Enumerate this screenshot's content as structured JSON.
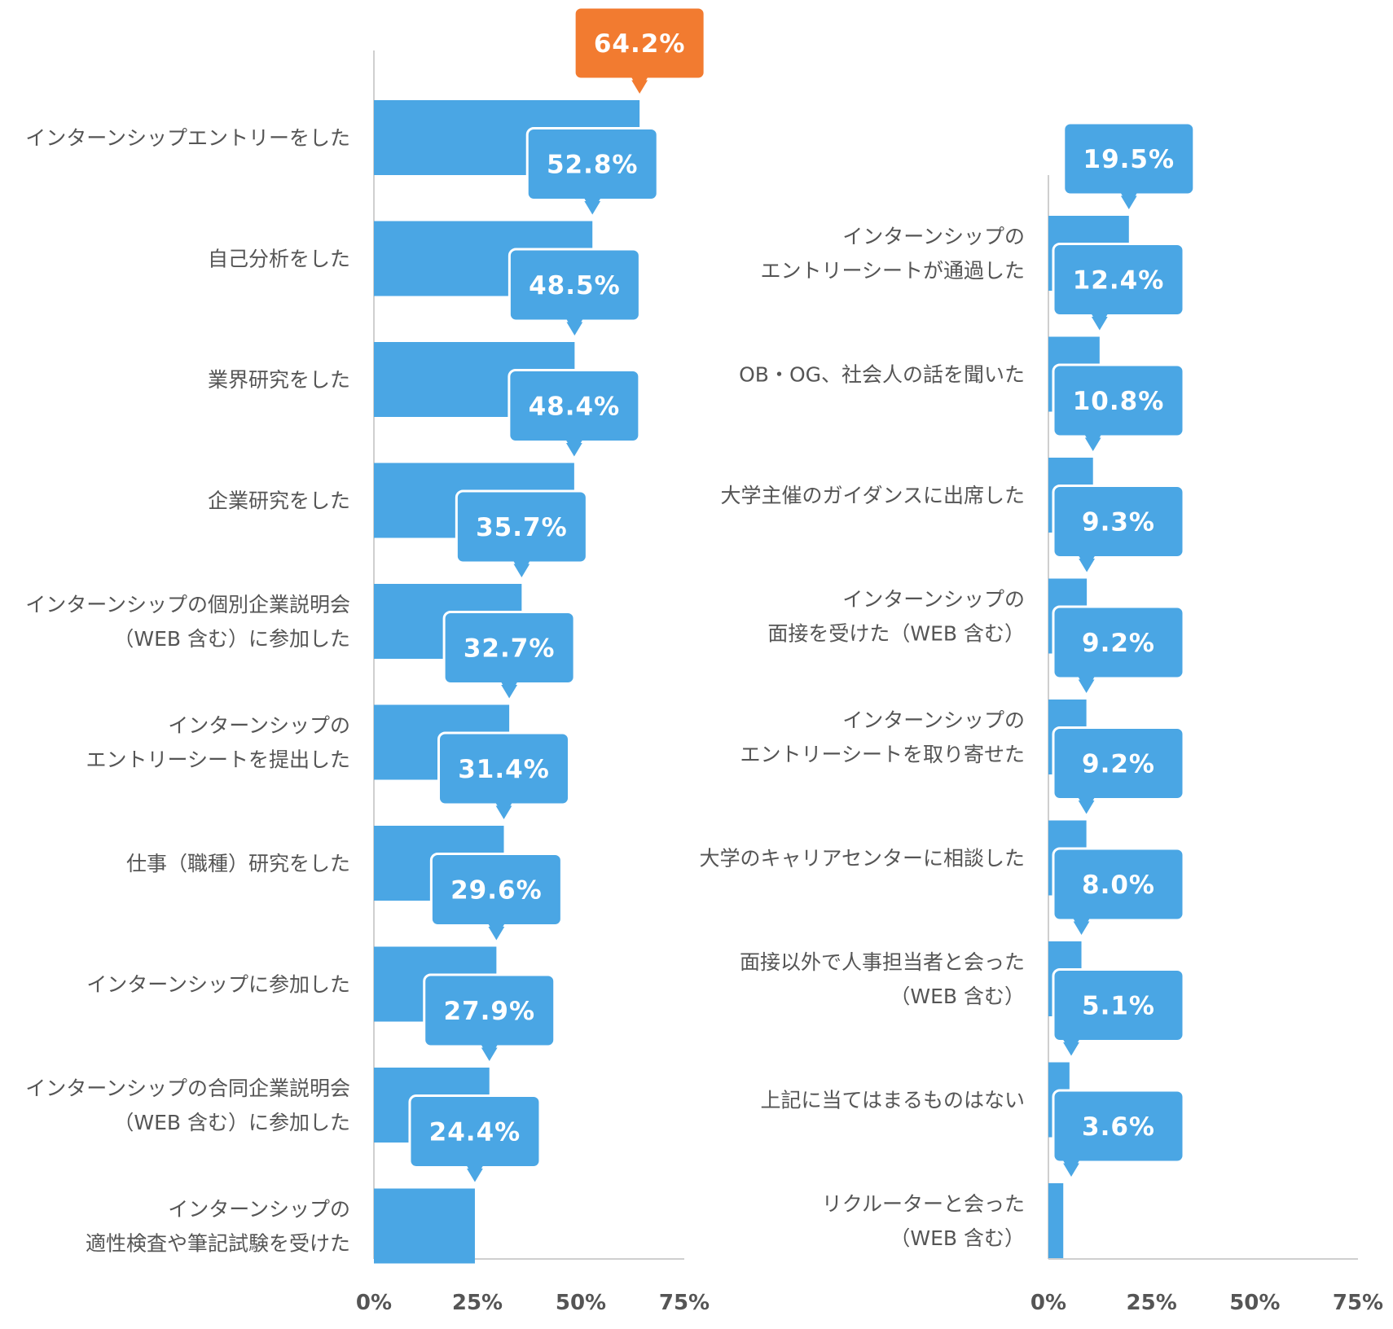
{
  "chart_data": [
    {
      "type": "bar",
      "orientation": "horizontal",
      "categories": [
        [
          "インターンシップエントリーをした"
        ],
        [
          "自己分析をした"
        ],
        [
          "業界研究をした"
        ],
        [
          "企業研究をした"
        ],
        [
          "インターンシップの個別企業説明会",
          "（WEB 含む）に参加した"
        ],
        [
          "インターンシップの",
          "エントリーシートを提出した"
        ],
        [
          "仕事（職種）研究をした"
        ],
        [
          "インターンシップに参加した"
        ],
        [
          "インターンシップの合同企業説明会",
          "（WEB 含む）に参加した"
        ],
        [
          "インターンシップの",
          "適性検査や筆記試験を受けた"
        ]
      ],
      "values": [
        64.2,
        52.8,
        48.5,
        48.4,
        35.7,
        32.7,
        31.4,
        29.6,
        27.9,
        24.4
      ],
      "value_labels": [
        "64.2%",
        "52.8%",
        "48.5%",
        "48.4%",
        "35.7%",
        "32.7%",
        "31.4%",
        "29.6%",
        "27.9%",
        "24.4%"
      ],
      "xlim": [
        0,
        75
      ],
      "x_ticks": [
        "0%",
        "25%",
        "50%",
        "75%"
      ],
      "bar_color": "#4aa6e4",
      "highlight_color": "#f27b30",
      "highlight_index": 0
    },
    {
      "type": "bar",
      "orientation": "horizontal",
      "categories": [
        [
          "インターンシップの",
          "エントリーシートが通過した"
        ],
        [
          "OB・OG、社会人の話を聞いた"
        ],
        [
          "大学主催のガイダンスに出席した"
        ],
        [
          "インターンシップの",
          "面接を受けた（WEB 含む）"
        ],
        [
          "インターンシップの",
          "エントリーシートを取り寄せた"
        ],
        [
          "大学のキャリアセンターに相談した"
        ],
        [
          "面接以外で人事担当者と会った",
          "（WEB 含む）"
        ],
        [
          "上記に当てはまるものはない"
        ],
        [
          "リクルーターと会った",
          "（WEB 含む）"
        ]
      ],
      "values": [
        19.5,
        12.4,
        10.8,
        9.3,
        9.2,
        9.2,
        8.0,
        5.1,
        3.6
      ],
      "value_labels": [
        "19.5%",
        "12.4%",
        "10.8%",
        "9.3%",
        "9.2%",
        "9.2%",
        "8.0%",
        "5.1%",
        "3.6%"
      ],
      "xlim": [
        0,
        75
      ],
      "x_ticks": [
        "0%",
        "25%",
        "50%",
        "75%"
      ],
      "bar_color": "#4aa6e4"
    }
  ]
}
